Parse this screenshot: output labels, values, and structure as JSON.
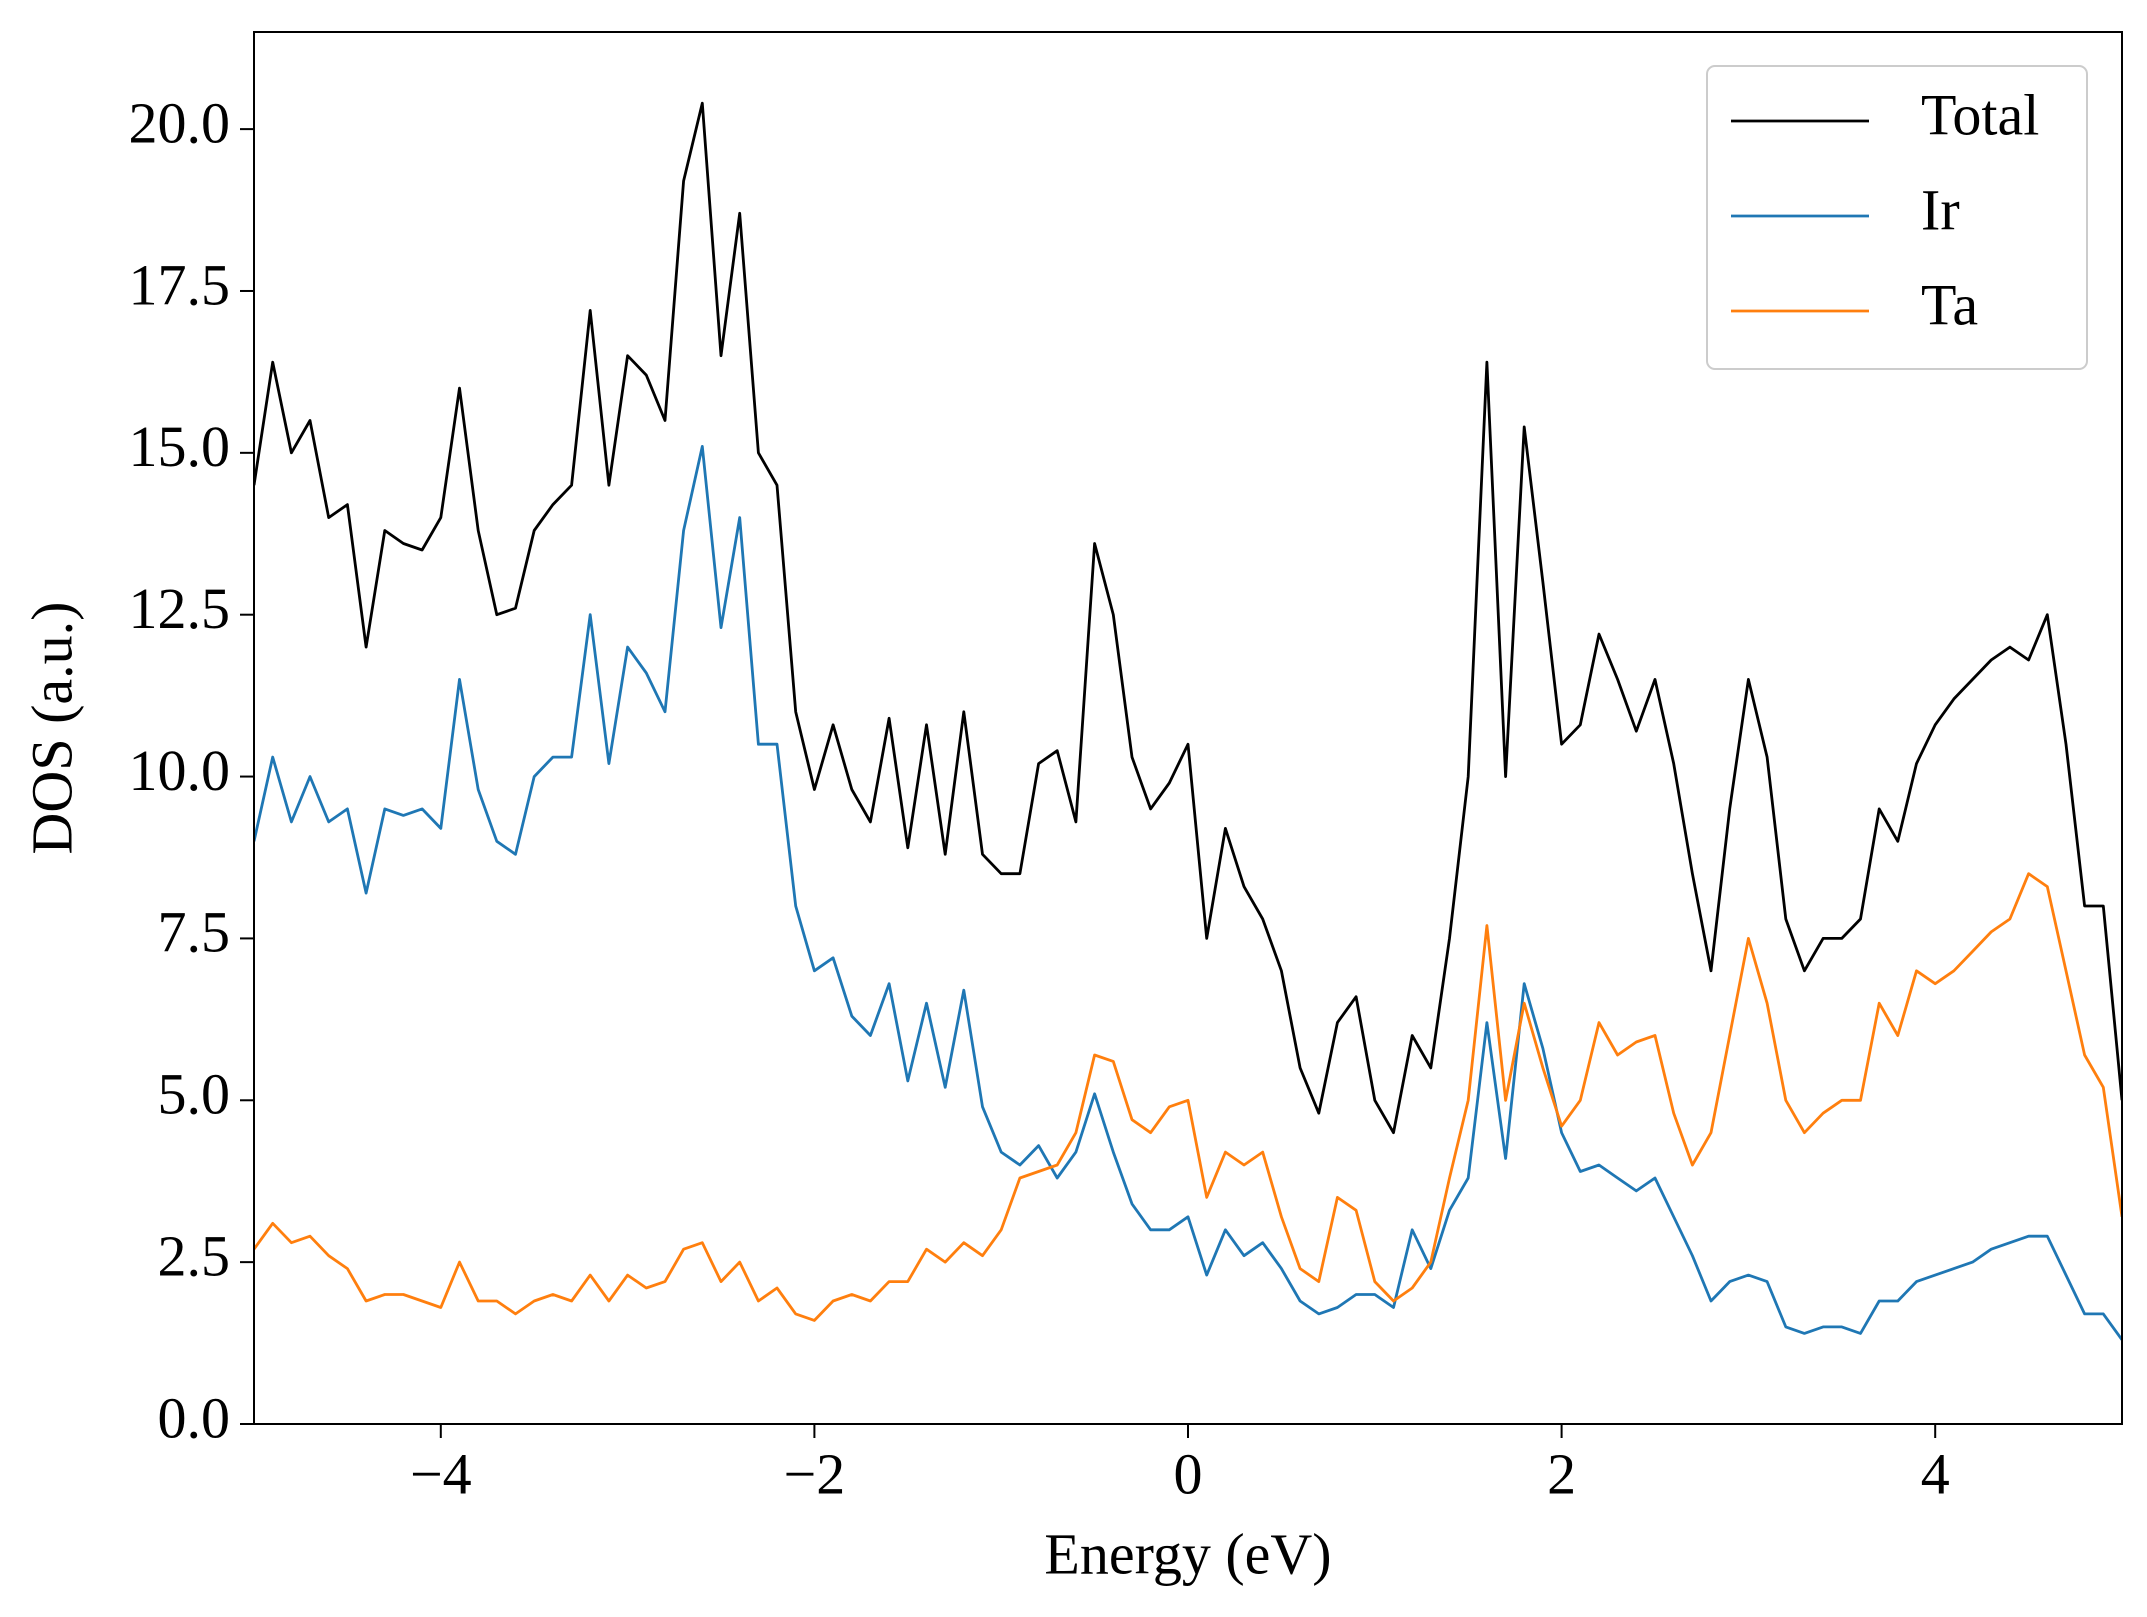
{
  "chart_data": {
    "type": "line",
    "xlabel": "Energy (eV)",
    "ylabel": "DOS (a.u.)",
    "x": [
      -5.0,
      -4.9,
      -4.8,
      -4.7,
      -4.6,
      -4.5,
      -4.4,
      -4.3,
      -4.2,
      -4.1,
      -4.0,
      -3.9,
      -3.8,
      -3.7,
      -3.6,
      -3.5,
      -3.4,
      -3.3,
      -3.2,
      -3.1,
      -3.0,
      -2.9,
      -2.8,
      -2.7,
      -2.6,
      -2.5,
      -2.4,
      -2.3,
      -2.2,
      -2.1,
      -2.0,
      -1.9,
      -1.8,
      -1.7,
      -1.6,
      -1.5,
      -1.4,
      -1.3,
      -1.2,
      -1.1,
      -1.0,
      -0.9,
      -0.8,
      -0.7,
      -0.6,
      -0.5,
      -0.4,
      -0.3,
      -0.2,
      -0.1,
      0.0,
      0.1,
      0.2,
      0.3,
      0.4,
      0.5,
      0.6,
      0.7,
      0.8,
      0.9,
      1.0,
      1.1,
      1.2,
      1.3,
      1.4,
      1.5,
      1.6,
      1.7,
      1.8,
      1.9,
      2.0,
      2.1,
      2.2,
      2.3,
      2.4,
      2.5,
      2.6,
      2.7,
      2.8,
      2.9,
      3.0,
      3.1,
      3.2,
      3.3,
      3.4,
      3.5,
      3.6,
      3.7,
      3.8,
      3.9,
      4.0,
      4.1,
      4.2,
      4.3,
      4.4,
      4.5,
      4.6,
      4.7,
      4.8,
      4.9,
      5.0
    ],
    "series": [
      {
        "name": "Total",
        "color": "#000000",
        "values": [
          14.5,
          16.4,
          15.0,
          15.5,
          14.0,
          14.2,
          12.0,
          13.8,
          13.6,
          13.5,
          14.0,
          16.0,
          13.8,
          12.5,
          12.6,
          13.8,
          14.2,
          14.5,
          17.2,
          14.5,
          16.5,
          16.2,
          15.5,
          19.2,
          20.4,
          16.5,
          18.7,
          15.0,
          14.5,
          11.0,
          9.8,
          10.8,
          9.8,
          9.3,
          10.9,
          8.9,
          10.8,
          8.8,
          11.0,
          8.8,
          8.5,
          8.5,
          10.2,
          10.4,
          9.3,
          13.6,
          12.5,
          10.3,
          9.5,
          9.9,
          10.5,
          7.5,
          9.2,
          8.3,
          7.8,
          7.0,
          5.5,
          4.8,
          6.2,
          6.6,
          5.0,
          4.5,
          6.0,
          5.5,
          7.5,
          10.0,
          16.4,
          10.0,
          15.4,
          13.0,
          10.5,
          10.8,
          12.2,
          11.5,
          10.7,
          11.5,
          10.2,
          8.5,
          7.0,
          9.5,
          11.5,
          10.3,
          7.8,
          7.0,
          7.5,
          7.5,
          7.8,
          9.5,
          9.0,
          10.2,
          10.8,
          11.2,
          11.5,
          11.8,
          12.0,
          11.8,
          12.5,
          10.5,
          8.0,
          8.0,
          5.0
        ]
      },
      {
        "name": "Ir",
        "color": "#1f77b4",
        "values": [
          9.0,
          10.3,
          9.3,
          10.0,
          9.3,
          9.5,
          8.2,
          9.5,
          9.4,
          9.5,
          9.2,
          11.5,
          9.8,
          9.0,
          8.8,
          10.0,
          10.3,
          10.3,
          12.5,
          10.2,
          12.0,
          11.6,
          11.0,
          13.8,
          15.1,
          12.3,
          14.0,
          10.5,
          10.5,
          8.0,
          7.0,
          7.2,
          6.3,
          6.0,
          6.8,
          5.3,
          6.5,
          5.2,
          6.7,
          4.9,
          4.2,
          4.0,
          4.3,
          3.8,
          4.2,
          5.1,
          4.2,
          3.4,
          3.0,
          3.0,
          3.2,
          2.3,
          3.0,
          2.6,
          2.8,
          2.4,
          1.9,
          1.7,
          1.8,
          2.0,
          2.0,
          1.8,
          3.0,
          2.4,
          3.3,
          3.8,
          6.2,
          4.1,
          6.8,
          5.8,
          4.5,
          3.9,
          4.0,
          3.8,
          3.6,
          3.8,
          3.2,
          2.6,
          1.9,
          2.2,
          2.3,
          2.2,
          1.5,
          1.4,
          1.5,
          1.5,
          1.4,
          1.9,
          1.9,
          2.2,
          2.3,
          2.4,
          2.5,
          2.7,
          2.8,
          2.9,
          2.9,
          2.3,
          1.7,
          1.7,
          1.3
        ]
      },
      {
        "name": "Ta",
        "color": "#ff7f0e",
        "values": [
          2.7,
          3.1,
          2.8,
          2.9,
          2.6,
          2.4,
          1.9,
          2.0,
          2.0,
          1.9,
          1.8,
          2.5,
          1.9,
          1.9,
          1.7,
          1.9,
          2.0,
          1.9,
          2.3,
          1.9,
          2.3,
          2.1,
          2.2,
          2.7,
          2.8,
          2.2,
          2.5,
          1.9,
          2.1,
          1.7,
          1.6,
          1.9,
          2.0,
          1.9,
          2.2,
          2.2,
          2.7,
          2.5,
          2.8,
          2.6,
          3.0,
          3.8,
          3.9,
          4.0,
          4.5,
          5.7,
          5.6,
          4.7,
          4.5,
          4.9,
          5.0,
          3.5,
          4.2,
          4.0,
          4.2,
          3.2,
          2.4,
          2.2,
          3.5,
          3.3,
          2.2,
          1.9,
          2.1,
          2.5,
          3.8,
          5.0,
          7.7,
          5.0,
          6.5,
          5.5,
          4.6,
          5.0,
          6.2,
          5.7,
          5.9,
          6.0,
          4.8,
          4.0,
          4.5,
          6.0,
          7.5,
          6.5,
          5.0,
          4.5,
          4.8,
          5.0,
          5.0,
          6.5,
          6.0,
          7.0,
          6.8,
          7.0,
          7.3,
          7.6,
          7.8,
          8.5,
          8.3,
          7.0,
          5.7,
          5.2,
          3.2
        ]
      }
    ],
    "xlim": [
      -5,
      5
    ],
    "ylim": [
      0,
      21.5
    ],
    "xticks": [
      {
        "value": -4,
        "label": "−4"
      },
      {
        "value": -2,
        "label": "−2"
      },
      0,
      2,
      4
    ],
    "yticks": [
      {
        "value": 0,
        "label": "0.0"
      },
      2.5,
      {
        "value": 5,
        "label": "5.0"
      },
      7.5,
      {
        "value": 10,
        "label": "10.0"
      },
      12.5,
      {
        "value": 15,
        "label": "15.0"
      },
      17.5,
      {
        "value": 20,
        "label": "20.0"
      }
    ],
    "grid": false,
    "legend": "upper right"
  }
}
